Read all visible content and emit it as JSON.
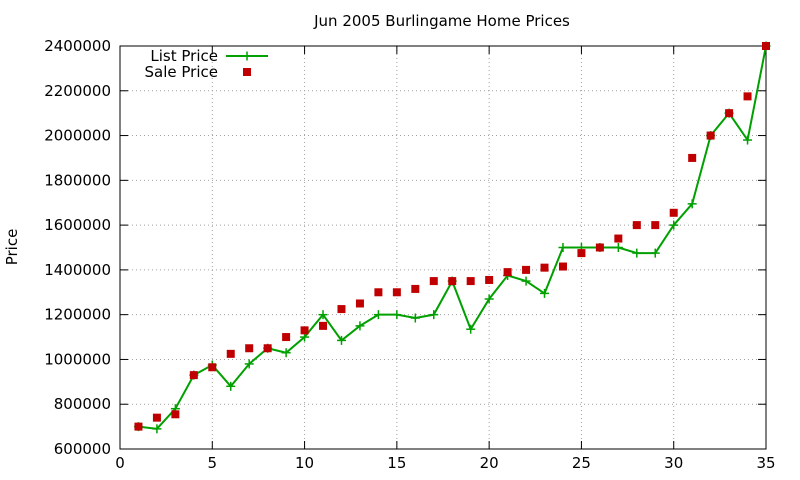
{
  "chart_data": {
    "type": "line",
    "title": "Jun 2005 Burlingame Home Prices",
    "xlabel": "",
    "ylabel": "Price",
    "xlim": [
      0,
      35
    ],
    "ylim": [
      600000,
      2400000
    ],
    "xticks": [
      0,
      5,
      10,
      15,
      20,
      25,
      30,
      35
    ],
    "yticks": [
      600000,
      800000,
      1000000,
      1200000,
      1400000,
      1600000,
      1800000,
      2000000,
      2200000,
      2400000
    ],
    "grid": true,
    "legend_position": "top-left",
    "series": [
      {
        "name": "List Price",
        "style": "line-plus",
        "color": "#00a000",
        "x": [
          1,
          2,
          3,
          4,
          5,
          6,
          7,
          8,
          9,
          10,
          11,
          12,
          13,
          14,
          15,
          16,
          17,
          18,
          19,
          20,
          21,
          22,
          23,
          24,
          25,
          26,
          27,
          28,
          29,
          30,
          31,
          32,
          33,
          34,
          35
        ],
        "y": [
          700000,
          690000,
          780000,
          930000,
          975000,
          880000,
          980000,
          1050000,
          1030000,
          1100000,
          1200000,
          1085000,
          1150000,
          1200000,
          1200000,
          1185000,
          1200000,
          1350000,
          1135000,
          1270000,
          1375000,
          1350000,
          1295000,
          1500000,
          1500000,
          1500000,
          1500000,
          1475000,
          1475000,
          1600000,
          1695000,
          2000000,
          2100000,
          1980000,
          2400000
        ]
      },
      {
        "name": "Sale Price",
        "style": "square",
        "color": "#c00000",
        "x": [
          1,
          2,
          3,
          4,
          5,
          6,
          7,
          8,
          9,
          10,
          11,
          12,
          13,
          14,
          15,
          16,
          17,
          18,
          19,
          20,
          21,
          22,
          23,
          24,
          25,
          26,
          27,
          28,
          29,
          30,
          31,
          32,
          33,
          34,
          35
        ],
        "y": [
          700000,
          740000,
          755000,
          930000,
          965000,
          1025000,
          1050000,
          1050000,
          1100000,
          1130000,
          1150000,
          1225000,
          1250000,
          1300000,
          1300000,
          1315000,
          1350000,
          1350000,
          1350000,
          1355000,
          1390000,
          1400000,
          1410000,
          1415000,
          1475000,
          1500000,
          1540000,
          1600000,
          1600000,
          1655000,
          1900000,
          2000000,
          2100000,
          2175000,
          2400000
        ]
      }
    ]
  }
}
